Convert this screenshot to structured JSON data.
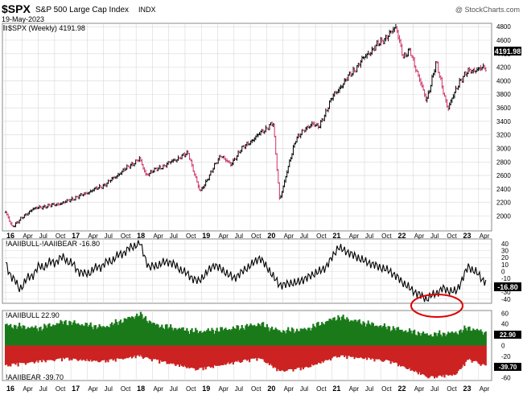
{
  "header": {
    "symbol": "$SPX",
    "name": "S&P 500 Large Cap Index",
    "exchange": "INDX",
    "date": "19-May-2023",
    "watermark": "@ StockCharts.com"
  },
  "colors": {
    "price_up": "#000000",
    "price_down": "#cc3366",
    "line": "#000000",
    "bull": "#1a7a1a",
    "bear": "#cc2222",
    "highlight": "#dd0000",
    "grid": "#d8d8d8",
    "label_box": "#000000",
    "label_box_text": "#ffffff"
  },
  "chart_data": [
    {
      "type": "line",
      "title": "$SPX (Weekly) 4191.98",
      "last_label": "4191.98",
      "y_ticks": [
        "4800",
        "4600",
        "4400",
        "4200",
        "4000",
        "3800",
        "3600",
        "3400",
        "3200",
        "3000",
        "2800",
        "2600",
        "2400",
        "2200",
        "2000"
      ],
      "ylim": [
        1780,
        4850
      ],
      "x_ticks": [
        "16",
        "Apr",
        "Jul",
        "Oct",
        "17",
        "Apr",
        "Jul",
        "Oct",
        "18",
        "Apr",
        "Jul",
        "Oct",
        "19",
        "Apr",
        "Jul",
        "Oct",
        "20",
        "Apr",
        "Jul",
        "Oct",
        "21",
        "Apr",
        "Jul",
        "Oct",
        "22",
        "Apr",
        "Jul",
        "Oct",
        "23",
        "Apr"
      ],
      "x": [
        2016.0,
        2016.1,
        2016.4,
        2016.9,
        2017.5,
        2018.05,
        2018.15,
        2018.8,
        2018.98,
        2019.3,
        2019.45,
        2019.6,
        2020.1,
        2020.2,
        2020.45,
        2020.7,
        2020.8,
        2021.0,
        2021.5,
        2021.99,
        2022.1,
        2022.2,
        2022.45,
        2022.6,
        2022.78,
        2022.95,
        2023.1,
        2023.38
      ],
      "values": [
        2050,
        1840,
        2100,
        2200,
        2450,
        2850,
        2610,
        2930,
        2350,
        2910,
        2750,
        2980,
        3380,
        2240,
        3150,
        3380,
        3300,
        3750,
        4350,
        4790,
        4330,
        4450,
        3700,
        4270,
        3580,
        3980,
        4150,
        4192
      ]
    },
    {
      "type": "line",
      "title": "!AAIIBULL-!AAIIBEAR -16.80",
      "last_label": "-16.80",
      "y_ticks": [
        "40",
        "30",
        "20",
        "10",
        "0",
        "-10",
        "-20",
        "-30",
        "-40"
      ],
      "ylim": [
        -46,
        47
      ],
      "x": [
        2016.0,
        2016.2,
        2016.5,
        2016.9,
        2017.2,
        2017.6,
        2018.05,
        2018.2,
        2018.5,
        2018.95,
        2019.2,
        2019.5,
        2019.9,
        2020.2,
        2020.5,
        2020.9,
        2021.1,
        2021.5,
        2021.9,
        2022.2,
        2022.45,
        2022.7,
        2022.9,
        2023.1,
        2023.38
      ],
      "values": [
        10,
        -25,
        5,
        20,
        -5,
        15,
        42,
        5,
        15,
        -15,
        10,
        -10,
        20,
        -20,
        -15,
        5,
        35,
        15,
        0,
        -25,
        -40,
        -25,
        -30,
        8,
        -16.8
      ]
    },
    {
      "type": "bar",
      "title_top": "!AAIIBULL 22.90",
      "title_bottom": "!AAIIBEAR -39.70",
      "bull_label": "22.90",
      "bear_label": "-39.70",
      "y_ticks": [
        "60",
        "40",
        "20",
        "0",
        "-20",
        "-40",
        "-60"
      ],
      "ylim": [
        -65,
        65
      ],
      "x_bull": [
        2016.0,
        2016.5,
        2016.9,
        2017.5,
        2018.05,
        2018.3,
        2018.95,
        2019.5,
        2019.9,
        2020.2,
        2020.6,
        2021.1,
        2021.5,
        2021.9,
        2022.3,
        2022.5,
        2022.9,
        2023.1,
        2023.38
      ],
      "bull": [
        38,
        32,
        44,
        34,
        58,
        38,
        26,
        32,
        40,
        27,
        30,
        53,
        42,
        33,
        24,
        20,
        24,
        33,
        23
      ],
      "x_bear": [
        2016.0,
        2016.5,
        2016.9,
        2017.5,
        2018.05,
        2018.3,
        2018.95,
        2019.5,
        2019.9,
        2020.2,
        2020.6,
        2021.1,
        2021.5,
        2021.9,
        2022.3,
        2022.5,
        2022.9,
        2023.1,
        2023.38
      ],
      "bear": [
        -38,
        -30,
        -25,
        -30,
        -20,
        -28,
        -45,
        -32,
        -24,
        -48,
        -42,
        -20,
        -24,
        -30,
        -50,
        -60,
        -54,
        -26,
        -39.7
      ]
    }
  ]
}
